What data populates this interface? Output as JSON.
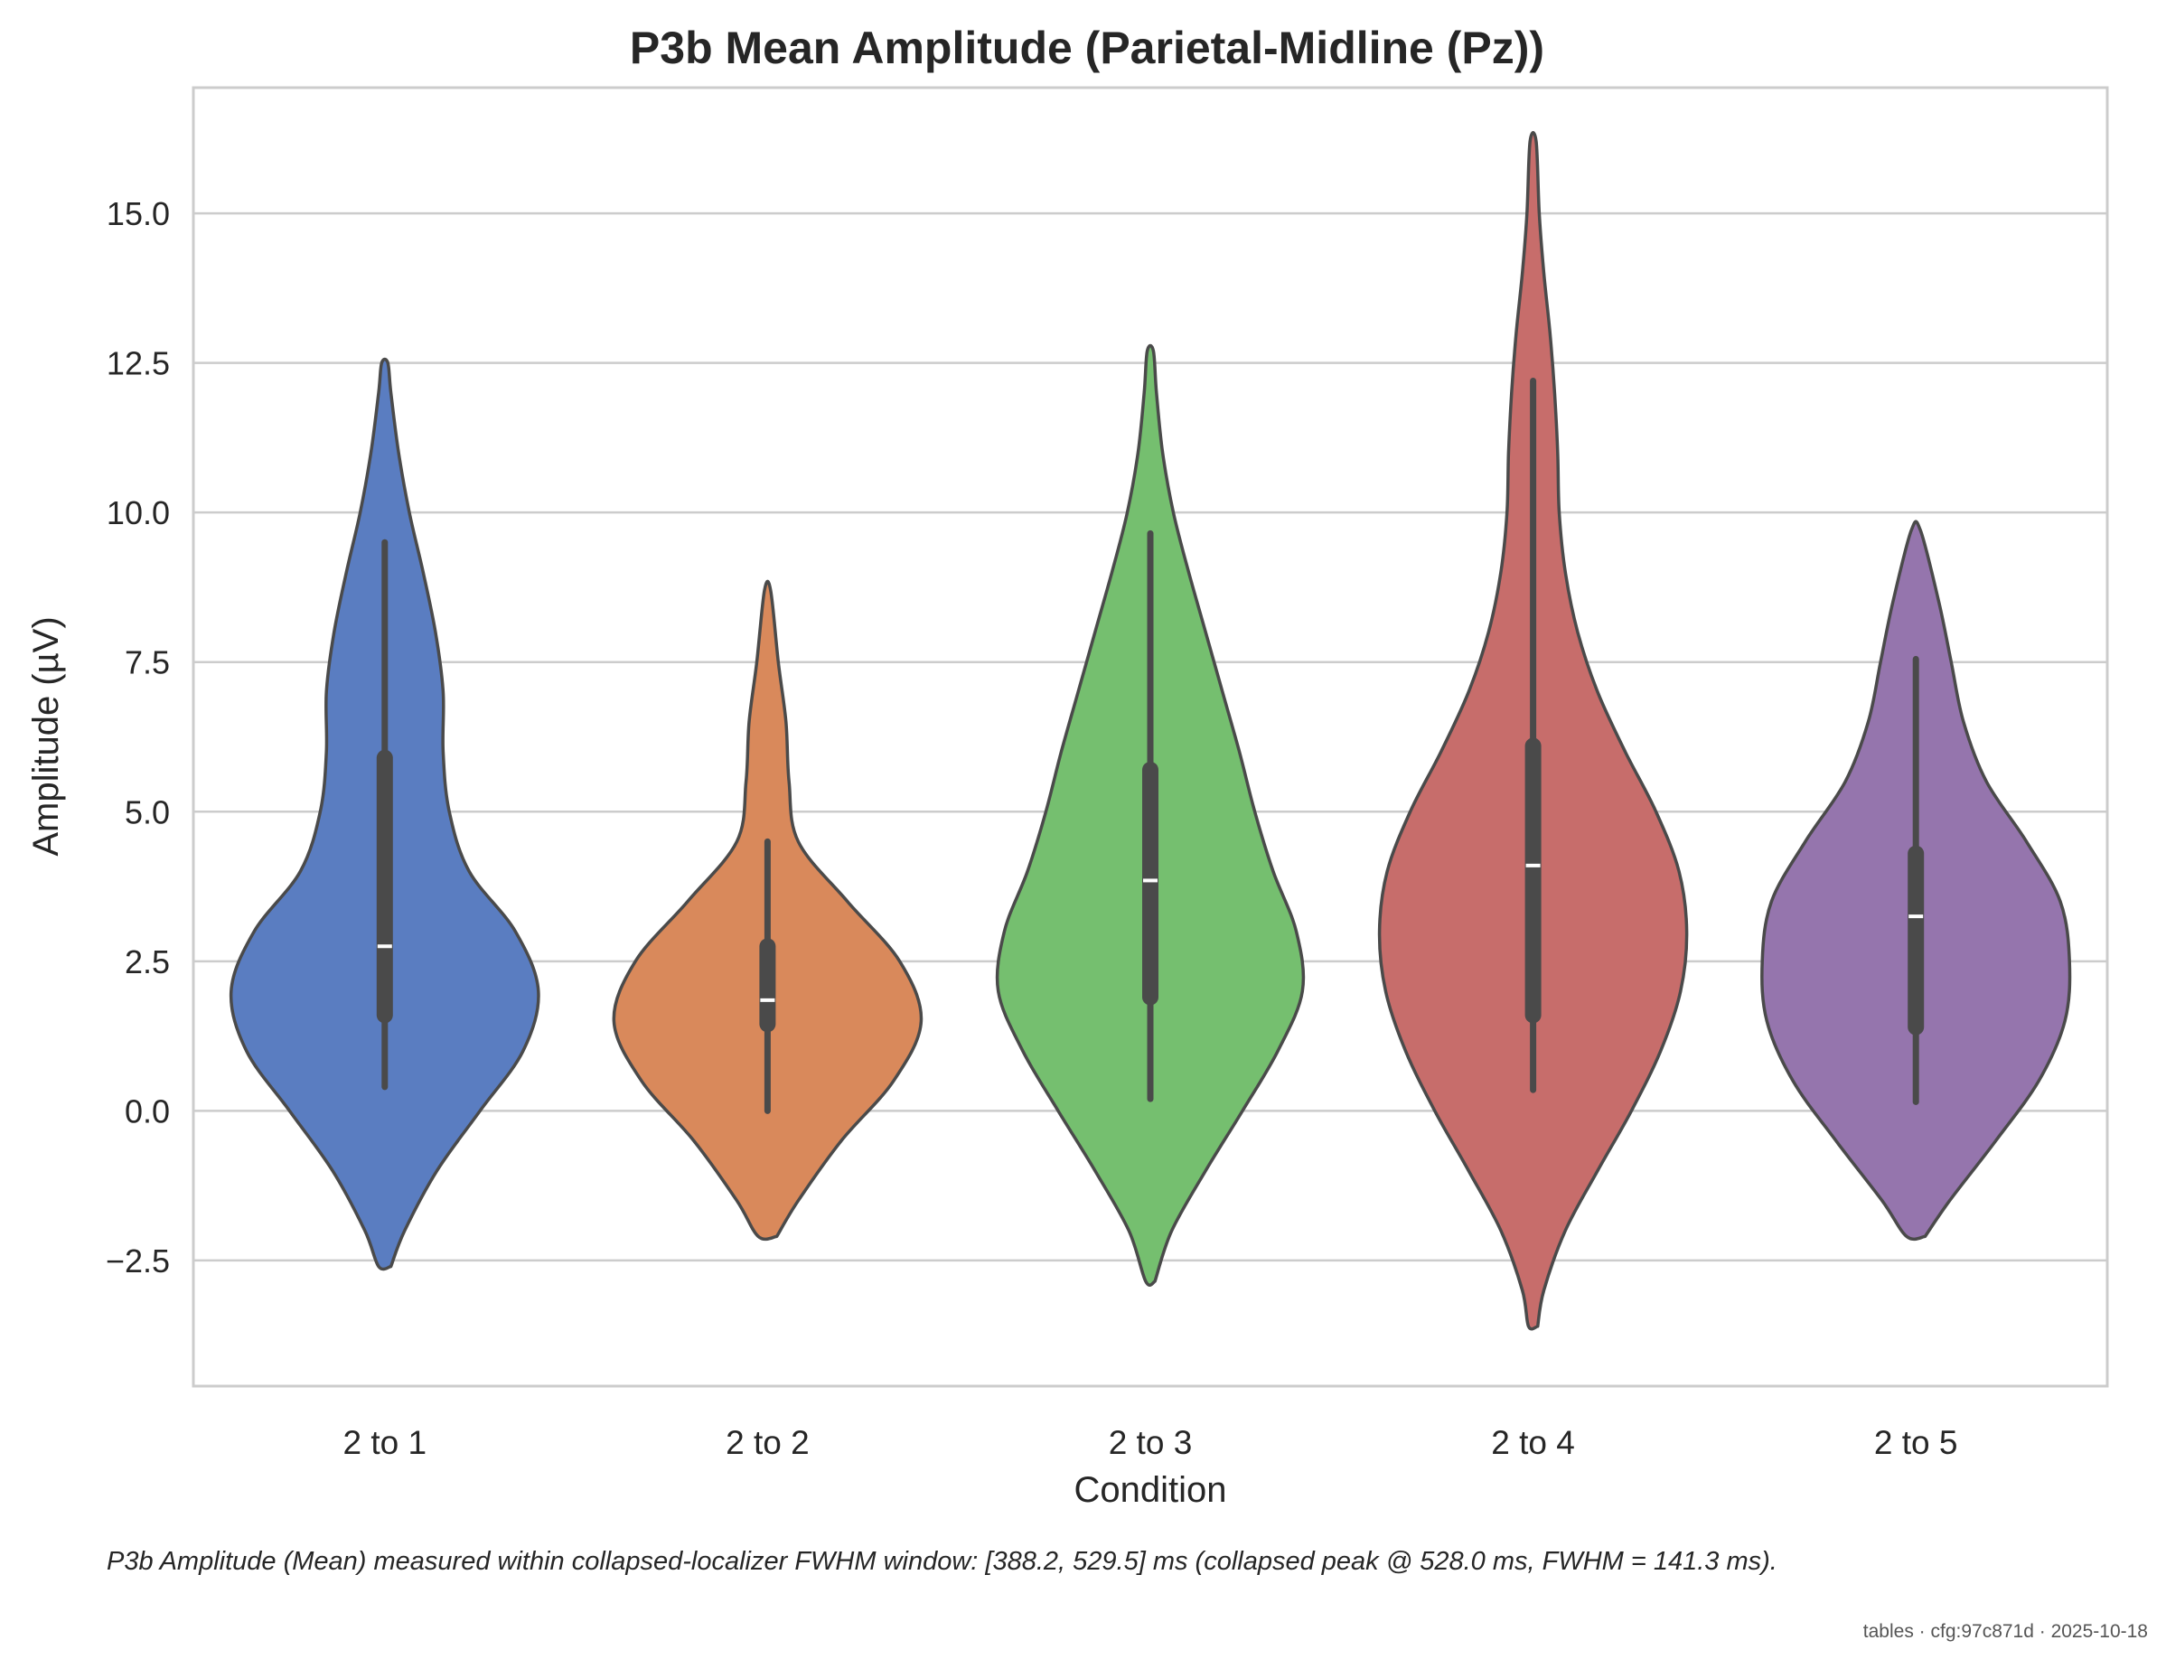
{
  "chart_data": {
    "type": "violin",
    "title": "P3b Mean Amplitude (Parietal-Midline (Pz))",
    "xlabel": "Condition",
    "ylabel": "Amplitude (µV)",
    "ylim": [
      -4.6,
      17.1
    ],
    "yticks": [
      -2.5,
      0.0,
      2.5,
      5.0,
      7.5,
      10.0,
      12.5,
      15.0
    ],
    "ytick_labels": [
      "−2.5",
      "0.0",
      "2.5",
      "5.0",
      "7.5",
      "10.0",
      "12.5",
      "15.0"
    ],
    "grid": "horizontal",
    "categories": [
      "2 to 1",
      "2 to 2",
      "2 to 3",
      "2 to 4",
      "2 to 5"
    ],
    "series": [
      {
        "color": "#5a7dc1",
        "min": 0.4,
        "q1": 1.6,
        "median": 2.75,
        "q3": 5.9,
        "max": 9.5,
        "density": [
          [
            -2.6,
            0.04
          ],
          [
            -2.0,
            0.13
          ],
          [
            -1.0,
            0.34
          ],
          [
            0.0,
            0.62
          ],
          [
            1.0,
            0.9
          ],
          [
            2.0,
            1.0
          ],
          [
            3.0,
            0.85
          ],
          [
            4.0,
            0.55
          ],
          [
            5.0,
            0.42
          ],
          [
            6.0,
            0.38
          ],
          [
            7.0,
            0.38
          ],
          [
            8.0,
            0.33
          ],
          [
            9.0,
            0.25
          ],
          [
            10.0,
            0.16
          ],
          [
            11.0,
            0.09
          ],
          [
            12.0,
            0.04
          ],
          [
            12.5,
            0.02
          ]
        ]
      },
      {
        "color": "#d9895b",
        "min": 0.0,
        "q1": 1.45,
        "median": 1.85,
        "q3": 2.75,
        "max": 4.5,
        "density": [
          [
            -2.1,
            0.06
          ],
          [
            -1.5,
            0.2
          ],
          [
            -0.5,
            0.48
          ],
          [
            0.5,
            0.82
          ],
          [
            1.5,
            1.0
          ],
          [
            2.5,
            0.86
          ],
          [
            3.5,
            0.52
          ],
          [
            4.5,
            0.2
          ],
          [
            5.5,
            0.14
          ],
          [
            6.5,
            0.12
          ],
          [
            7.5,
            0.07
          ],
          [
            8.7,
            0.02
          ]
        ]
      },
      {
        "color": "#75bf6f",
        "min": 0.2,
        "q1": 1.9,
        "median": 3.85,
        "q3": 5.7,
        "max": 9.65,
        "density": [
          [
            -2.85,
            0.03
          ],
          [
            -2.0,
            0.14
          ],
          [
            -1.0,
            0.36
          ],
          [
            0.0,
            0.6
          ],
          [
            1.0,
            0.83
          ],
          [
            2.0,
            0.99
          ],
          [
            3.0,
            0.95
          ],
          [
            4.0,
            0.8
          ],
          [
            5.0,
            0.68
          ],
          [
            6.0,
            0.58
          ],
          [
            7.0,
            0.47
          ],
          [
            8.0,
            0.36
          ],
          [
            9.0,
            0.25
          ],
          [
            10.0,
            0.15
          ],
          [
            11.0,
            0.08
          ],
          [
            12.0,
            0.04
          ],
          [
            12.7,
            0.02
          ]
        ]
      },
      {
        "color": "#c76d6b",
        "min": 0.35,
        "q1": 1.6,
        "median": 4.1,
        "q3": 6.1,
        "max": 12.2,
        "density": [
          [
            -3.6,
            0.03
          ],
          [
            -3.0,
            0.07
          ],
          [
            -2.0,
            0.21
          ],
          [
            -1.0,
            0.42
          ],
          [
            0.0,
            0.64
          ],
          [
            1.0,
            0.83
          ],
          [
            2.0,
            0.96
          ],
          [
            3.0,
            1.0
          ],
          [
            4.0,
            0.95
          ],
          [
            5.0,
            0.8
          ],
          [
            6.0,
            0.6
          ],
          [
            7.0,
            0.42
          ],
          [
            8.0,
            0.29
          ],
          [
            9.0,
            0.21
          ],
          [
            10.0,
            0.17
          ],
          [
            11.0,
            0.16
          ],
          [
            12.0,
            0.14
          ],
          [
            13.0,
            0.11
          ],
          [
            14.0,
            0.07
          ],
          [
            15.0,
            0.04
          ],
          [
            16.2,
            0.02
          ]
        ]
      },
      {
        "color": "#9575ad",
        "min": 0.15,
        "q1": 1.4,
        "median": 3.25,
        "q3": 4.3,
        "max": 7.55,
        "density": [
          [
            -2.1,
            0.06
          ],
          [
            -1.5,
            0.22
          ],
          [
            -0.5,
            0.52
          ],
          [
            0.5,
            0.8
          ],
          [
            1.5,
            0.97
          ],
          [
            2.5,
            1.0
          ],
          [
            3.5,
            0.94
          ],
          [
            4.5,
            0.72
          ],
          [
            5.5,
            0.46
          ],
          [
            6.5,
            0.31
          ],
          [
            7.5,
            0.23
          ],
          [
            8.5,
            0.15
          ],
          [
            9.7,
            0.03
          ]
        ]
      }
    ]
  },
  "caption": "P3b Amplitude (Mean) measured within collapsed-localizer FWHM window: [388.2, 529.5] ms (collapsed peak @ 528.0 ms, FWHM = 141.3 ms).",
  "footer": "tables · cfg:97c871d · 2025-10-18"
}
